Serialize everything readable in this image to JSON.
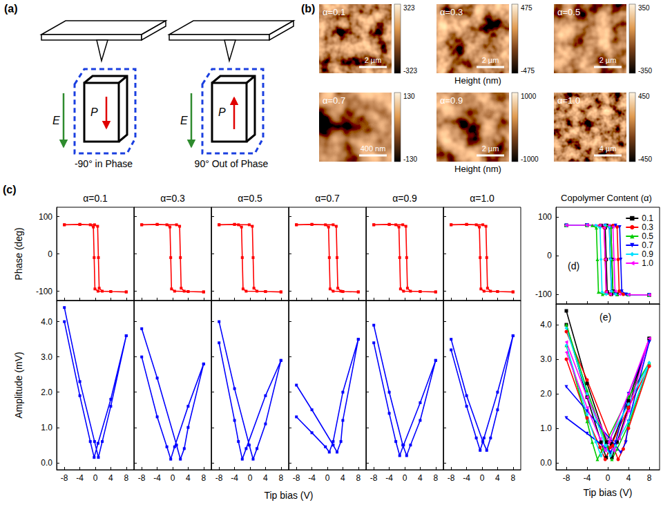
{
  "panel_a": {
    "label": "(a)",
    "field": "E",
    "polarization": "P",
    "captions": [
      "-90° in Phase",
      "90° Out of Phase"
    ]
  },
  "panel_b": {
    "label": "(b)",
    "axis_label": "Height (nm)",
    "images": [
      {
        "title": "α=0.1",
        "scale_bar": "2 µm",
        "colorbar_range": [
          -323,
          323
        ]
      },
      {
        "title": "α=0.3",
        "scale_bar": "2 µm",
        "colorbar_range": [
          -475,
          475
        ]
      },
      {
        "title": "α=0.5",
        "scale_bar": "2 µm",
        "colorbar_range": [
          -350,
          350
        ]
      },
      {
        "title": "α=0.7",
        "scale_bar": "400 nm",
        "colorbar_range": [
          -130,
          130
        ]
      },
      {
        "title": "α=0.9",
        "scale_bar": "2 µm",
        "colorbar_range": [
          -1000,
          1000
        ]
      },
      {
        "title": "α=1.0",
        "scale_bar": "4 µm",
        "colorbar_range": [
          -450,
          450
        ]
      }
    ]
  },
  "chart_data": [
    {
      "type": "line",
      "label": "(c)",
      "titles": [
        "α=0.1",
        "α=0.3",
        "α=0.5",
        "α=0.7",
        "α=0.9",
        "α=1.0"
      ],
      "ylabel": "Phase (deg)",
      "color": "#ff0000",
      "marker": "square",
      "xlim": [
        -10,
        10
      ],
      "xticks": [
        -8,
        -4,
        0,
        4,
        8
      ],
      "ylim": [
        -125,
        125
      ],
      "yticks": [
        -100,
        0,
        100
      ],
      "grid": false,
      "tick_labels": "y",
      "series": [
        {
          "x": [
            -8,
            -4,
            -0.2,
            0.6,
            0.8,
            1.0,
            1.8,
            4,
            8,
            8,
            4,
            0.7,
            -0.1,
            -0.3,
            -0.5,
            -1.3,
            -4,
            -8
          ],
          "values": [
            78,
            79,
            78,
            74,
            -10,
            -92,
            -100,
            -101,
            -102,
            -102,
            -101,
            -100,
            -94,
            -10,
            72,
            78,
            79,
            78
          ]
        },
        {
          "x": [
            -8,
            -4,
            1.0,
            1.8,
            2.0,
            2.2,
            3.0,
            4,
            8,
            8,
            4,
            0.5,
            -0.3,
            -0.5,
            -0.7,
            -1.5,
            -4,
            -8
          ],
          "values": [
            78,
            79,
            78,
            74,
            -10,
            -92,
            -100,
            -101,
            -102,
            -102,
            -101,
            -100,
            -94,
            -10,
            72,
            78,
            79,
            78
          ]
        },
        {
          "x": [
            -8,
            -4,
            -0.2,
            0.6,
            0.8,
            1.0,
            1.8,
            4,
            8,
            8,
            4,
            -1.0,
            -1.8,
            -2.0,
            -2.2,
            -3.0,
            -4,
            -8
          ],
          "values": [
            78,
            79,
            78,
            74,
            -10,
            -92,
            -100,
            -101,
            -102,
            -102,
            -101,
            -100,
            -94,
            -10,
            72,
            78,
            79,
            78
          ]
        },
        {
          "x": [
            -8,
            -4,
            1.5,
            2.3,
            2.5,
            2.7,
            3.5,
            4,
            8,
            8,
            4,
            1.5,
            0.7,
            0.5,
            0.3,
            -0.5,
            -4,
            -8
          ],
          "values": [
            78,
            79,
            78,
            74,
            -10,
            -92,
            -100,
            -101,
            -102,
            -102,
            -101,
            -100,
            -94,
            -10,
            72,
            78,
            79,
            78
          ]
        },
        {
          "x": [
            -8,
            -4,
            -0.5,
            0.3,
            0.5,
            0.7,
            1.5,
            4,
            8,
            8,
            4,
            -0.3,
            -1.1,
            -1.3,
            -1.5,
            -2.3,
            -4,
            -8
          ],
          "values": [
            78,
            79,
            78,
            74,
            -10,
            -92,
            -100,
            -101,
            -102,
            -102,
            -101,
            -100,
            -94,
            -10,
            72,
            78,
            79,
            78
          ]
        },
        {
          "x": [
            -8,
            -4,
            0.2,
            1.0,
            1.2,
            1.4,
            2.2,
            4,
            8,
            8,
            4,
            0.5,
            -0.3,
            -0.5,
            -0.7,
            -1.5,
            -4,
            -8
          ],
          "values": [
            78,
            79,
            78,
            74,
            -10,
            -92,
            -100,
            -101,
            -102,
            -102,
            -101,
            -100,
            -94,
            -10,
            72,
            78,
            79,
            78
          ]
        }
      ]
    },
    {
      "type": "line",
      "ylabel": "Amplitude (mV)",
      "xlabel": "Tip bias (V)",
      "color": "#0000ff",
      "marker": "square",
      "xlim": [
        -10,
        10
      ],
      "xticks": [
        -8,
        -4,
        0,
        4,
        8
      ],
      "ylim": [
        -0.2,
        4.6
      ],
      "yticks": [
        {
          "value": 0,
          "label": "0.0"
        },
        {
          "value": 1,
          "label": "1.0"
        },
        {
          "value": 2,
          "label": "2.0"
        },
        {
          "value": 3,
          "label": "3.0"
        },
        {
          "value": 4,
          "label": "4.0"
        }
      ],
      "grid": false,
      "tick_labels": true,
      "series": [
        {
          "x": [
            -8,
            -4,
            -0.2,
            0.8,
            1.8,
            4,
            8,
            8,
            4,
            0.7,
            -0.3,
            -1.3,
            -4,
            -8
          ],
          "values": [
            4.4,
            2.3,
            0.6,
            0.15,
            0.6,
            1.6,
            3.6,
            3.6,
            1.8,
            0.55,
            0.15,
            0.6,
            1.9,
            4.0
          ]
        },
        {
          "x": [
            -8,
            -4,
            1.0,
            2.0,
            3.0,
            4,
            8,
            8,
            4,
            0.5,
            -0.5,
            -1.5,
            -4,
            -8
          ],
          "values": [
            3.8,
            2.4,
            0.5,
            0.1,
            0.4,
            1.0,
            2.8,
            2.8,
            1.6,
            0.45,
            0.1,
            0.45,
            1.3,
            3.0
          ]
        },
        {
          "x": [
            -8,
            -4,
            -0.2,
            0.8,
            1.8,
            4,
            8,
            8,
            4,
            -1.0,
            -2.0,
            -3.0,
            -4,
            -8
          ],
          "values": [
            4.0,
            2.1,
            0.5,
            0.1,
            0.4,
            1.1,
            2.9,
            2.9,
            1.9,
            0.4,
            0.1,
            0.6,
            1.2,
            3.4
          ]
        },
        {
          "x": [
            -8,
            -4,
            1.5,
            2.5,
            3.5,
            4,
            8,
            8,
            4,
            1.5,
            0.5,
            -0.5,
            -4,
            -8
          ],
          "values": [
            2.2,
            1.5,
            0.5,
            0.3,
            0.6,
            1.2,
            3.5,
            3.5,
            2.0,
            0.6,
            0.3,
            0.45,
            0.85,
            1.3
          ]
        },
        {
          "x": [
            -8,
            -4,
            -0.5,
            0.5,
            1.5,
            4,
            8,
            8,
            4,
            -0.3,
            -1.3,
            -2.3,
            -4,
            -8
          ],
          "values": [
            3.9,
            2.0,
            0.5,
            0.2,
            0.5,
            1.2,
            2.9,
            2.9,
            1.7,
            0.5,
            0.2,
            0.6,
            1.4,
            3.4
          ]
        },
        {
          "x": [
            -8,
            -4,
            0.2,
            1.2,
            2.2,
            4,
            8,
            8,
            4,
            0.5,
            -0.5,
            -1.5,
            -4,
            -8
          ],
          "values": [
            3.5,
            1.9,
            0.6,
            0.35,
            0.7,
            1.5,
            3.6,
            3.6,
            2.0,
            0.7,
            0.35,
            0.7,
            1.6,
            3.2
          ]
        }
      ]
    },
    {
      "type": "line",
      "label": "(d)",
      "legend_title": "Copolymer Content (α)",
      "legend": "upper right",
      "xlim": [
        -10,
        10
      ],
      "xticks": [
        -8,
        -4,
        0,
        4,
        8
      ],
      "ylim": [
        -125,
        125
      ],
      "yticks": [
        -100,
        0,
        100
      ],
      "grid": false,
      "tick_labels": "y",
      "series": [
        {
          "name": "0.1",
          "color": "#000000",
          "marker": "square",
          "x": [
            -8,
            -4,
            -0.2,
            0.6,
            0.8,
            1.0,
            1.8,
            4,
            8,
            8,
            4,
            0.7,
            -0.1,
            -0.3,
            -0.5,
            -1.3,
            -4,
            -8
          ],
          "values": [
            78,
            79,
            78,
            74,
            -10,
            -92,
            -100,
            -101,
            -102,
            -102,
            -101,
            -100,
            -94,
            -10,
            72,
            78,
            79,
            78
          ]
        },
        {
          "name": "0.3",
          "color": "#ff0000",
          "marker": "circle",
          "x": [
            -8,
            -4,
            1.0,
            1.8,
            2.0,
            2.2,
            3.0,
            4,
            8,
            8,
            4,
            0.5,
            -0.3,
            -0.5,
            -0.7,
            -1.5,
            -4,
            -8
          ],
          "values": [
            78,
            79,
            78,
            74,
            -10,
            -92,
            -100,
            -101,
            -102,
            -102,
            -101,
            -100,
            -94,
            -10,
            72,
            78,
            79,
            78
          ]
        },
        {
          "name": "0.5",
          "color": "#00cc00",
          "marker": "triangle",
          "x": [
            -8,
            -4,
            -0.2,
            0.6,
            0.8,
            1.0,
            1.8,
            4,
            8,
            8,
            4,
            -1.0,
            -1.8,
            -2.0,
            -2.2,
            -3.0,
            -4,
            -8
          ],
          "values": [
            78,
            79,
            78,
            74,
            -10,
            -92,
            -100,
            -101,
            -102,
            -102,
            -101,
            -100,
            -94,
            -10,
            72,
            78,
            79,
            78
          ]
        },
        {
          "name": "0.7",
          "color": "#0000ff",
          "marker": "triangle-down",
          "x": [
            -8,
            -4,
            1.5,
            2.3,
            2.5,
            2.7,
            3.5,
            4,
            8,
            8,
            4,
            1.5,
            0.7,
            0.5,
            0.3,
            -0.5,
            -4,
            -8
          ],
          "values": [
            78,
            79,
            78,
            74,
            -10,
            -92,
            -100,
            -101,
            -102,
            -102,
            -101,
            -100,
            -94,
            -10,
            72,
            78,
            79,
            78
          ]
        },
        {
          "name": "0.9",
          "color": "#00e0ff",
          "marker": "diamond",
          "x": [
            -8,
            -4,
            -0.5,
            0.3,
            0.5,
            0.7,
            1.5,
            4,
            8,
            8,
            4,
            -0.3,
            -1.1,
            -1.3,
            -1.5,
            -2.3,
            -4,
            -8
          ],
          "values": [
            78,
            79,
            78,
            74,
            -10,
            -92,
            -100,
            -101,
            -102,
            -102,
            -101,
            -100,
            -94,
            -10,
            72,
            78,
            79,
            78
          ]
        },
        {
          "name": "1.0",
          "color": "#ff00ff",
          "marker": "triangle-left",
          "x": [
            -8,
            -4,
            0.2,
            1.0,
            1.2,
            1.4,
            2.2,
            4,
            8,
            8,
            4,
            0.5,
            -0.3,
            -0.5,
            -0.7,
            -1.5,
            -4,
            -8
          ],
          "values": [
            78,
            79,
            78,
            74,
            -10,
            -92,
            -100,
            -101,
            -102,
            -102,
            -101,
            -100,
            -94,
            -10,
            72,
            78,
            79,
            78
          ]
        }
      ]
    },
    {
      "type": "line",
      "label": "(e)",
      "xlabel": "Tip bias (V)",
      "xlim": [
        -10,
        10
      ],
      "xticks": [
        -8,
        -4,
        0,
        4,
        8
      ],
      "ylim": [
        -0.2,
        4.6
      ],
      "yticks": [
        {
          "value": 0,
          "label": "0.0"
        },
        {
          "value": 1,
          "label": "1.0"
        },
        {
          "value": 2,
          "label": "2.0"
        },
        {
          "value": 3,
          "label": "3.0"
        },
        {
          "value": 4,
          "label": "4.0"
        }
      ],
      "grid": false,
      "tick_labels": true,
      "series": [
        {
          "name": "0.1",
          "color": "#000000",
          "marker": "square",
          "x": [
            -8,
            -4,
            -0.2,
            0.8,
            1.8,
            4,
            8,
            8,
            4,
            0.7,
            -0.3,
            -1.3,
            -4,
            -8
          ],
          "values": [
            4.4,
            2.3,
            0.6,
            0.15,
            0.6,
            1.6,
            3.6,
            3.6,
            1.8,
            0.55,
            0.15,
            0.6,
            1.9,
            4.0
          ]
        },
        {
          "name": "0.3",
          "color": "#ff0000",
          "marker": "circle",
          "x": [
            -8,
            -4,
            1.0,
            2.0,
            3.0,
            4,
            8,
            8,
            4,
            0.5,
            -0.5,
            -1.5,
            -4,
            -8
          ],
          "values": [
            3.8,
            2.4,
            0.5,
            0.1,
            0.4,
            1.0,
            2.8,
            2.8,
            1.6,
            0.45,
            0.1,
            0.45,
            1.3,
            3.0
          ]
        },
        {
          "name": "0.5",
          "color": "#00cc00",
          "marker": "triangle",
          "x": [
            -8,
            -4,
            -0.2,
            0.8,
            1.8,
            4,
            8,
            8,
            4,
            -1.0,
            -2.0,
            -3.0,
            -4,
            -8
          ],
          "values": [
            4.0,
            2.1,
            0.5,
            0.1,
            0.4,
            1.1,
            2.9,
            2.9,
            1.9,
            0.4,
            0.1,
            0.6,
            1.2,
            3.4
          ]
        },
        {
          "name": "0.7",
          "color": "#0000ff",
          "marker": "triangle-down",
          "x": [
            -8,
            -4,
            1.5,
            2.5,
            3.5,
            4,
            8,
            8,
            4,
            1.5,
            0.5,
            -0.5,
            -4,
            -8
          ],
          "values": [
            2.2,
            1.5,
            0.5,
            0.3,
            0.6,
            1.2,
            3.5,
            3.5,
            2.0,
            0.6,
            0.3,
            0.45,
            0.85,
            1.3
          ]
        },
        {
          "name": "0.9",
          "color": "#00e0ff",
          "marker": "diamond",
          "x": [
            -8,
            -4,
            -0.5,
            0.5,
            1.5,
            4,
            8,
            8,
            4,
            -0.3,
            -1.3,
            -2.3,
            -4,
            -8
          ],
          "values": [
            3.9,
            2.0,
            0.5,
            0.2,
            0.5,
            1.2,
            2.9,
            2.9,
            1.7,
            0.5,
            0.2,
            0.6,
            1.4,
            3.4
          ]
        },
        {
          "name": "1.0",
          "color": "#ff00ff",
          "marker": "triangle-left",
          "x": [
            -8,
            -4,
            0.2,
            1.2,
            2.2,
            4,
            8,
            8,
            4,
            0.5,
            -0.5,
            -1.5,
            -4,
            -8
          ],
          "values": [
            3.5,
            1.9,
            0.6,
            0.35,
            0.7,
            1.5,
            3.6,
            3.6,
            2.0,
            0.7,
            0.35,
            0.7,
            1.6,
            3.2
          ]
        }
      ]
    }
  ]
}
